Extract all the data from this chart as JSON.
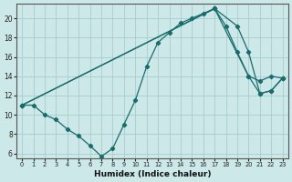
{
  "xlabel": "Humidex (Indice chaleur)",
  "bg_color": "#cce8e8",
  "grid_color": "#aacccc",
  "line_color": "#1a6b6b",
  "xlim": [
    -0.5,
    23.5
  ],
  "ylim": [
    5.5,
    21.5
  ],
  "yticks": [
    6,
    8,
    10,
    12,
    14,
    16,
    18,
    20
  ],
  "xticks": [
    0,
    1,
    2,
    3,
    4,
    5,
    6,
    7,
    8,
    9,
    10,
    11,
    12,
    13,
    14,
    15,
    16,
    17,
    18,
    19,
    20,
    21,
    22,
    23
  ],
  "line1_x": [
    0,
    1,
    2,
    3,
    4,
    5,
    6,
    7,
    8,
    9,
    10,
    11,
    12,
    13,
    14,
    15,
    16,
    17,
    18,
    19,
    20,
    21,
    22,
    23
  ],
  "line1_y": [
    11,
    11,
    10,
    9.5,
    8.5,
    7.8,
    6.8,
    5.7,
    6.5,
    9.0,
    11.5,
    15.0,
    17.5,
    18.5,
    19.5,
    20.0,
    20.5,
    21.0,
    19.2,
    16.5,
    14.0,
    12.2,
    12.5,
    13.8
  ],
  "line2_x": [
    0,
    17,
    20,
    21,
    22,
    23
  ],
  "line2_y": [
    11,
    21.0,
    14.0,
    13.5,
    14.0,
    13.8
  ],
  "line3_x": [
    0,
    17,
    19,
    20,
    21,
    22,
    23
  ],
  "line3_y": [
    11,
    21.0,
    19.2,
    16.5,
    12.2,
    12.5,
    13.8
  ]
}
